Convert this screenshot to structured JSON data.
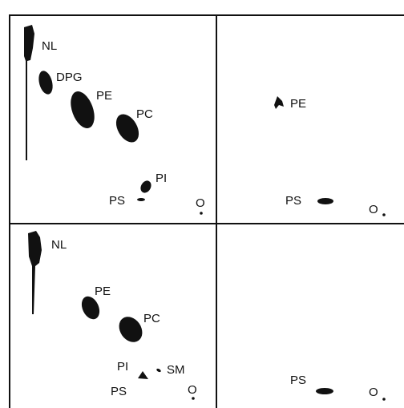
{
  "panels": [
    {
      "labels": [
        "NL",
        "DPG",
        "PE",
        "PC",
        "PI",
        "PS",
        "O"
      ]
    },
    {
      "labels": [
        "PE",
        "PS",
        "O"
      ]
    },
    {
      "labels": [
        "NL",
        "PE",
        "PC",
        "PI",
        "SM",
        "PS",
        "O"
      ]
    },
    {
      "labels": [
        "PS",
        "O"
      ]
    }
  ]
}
